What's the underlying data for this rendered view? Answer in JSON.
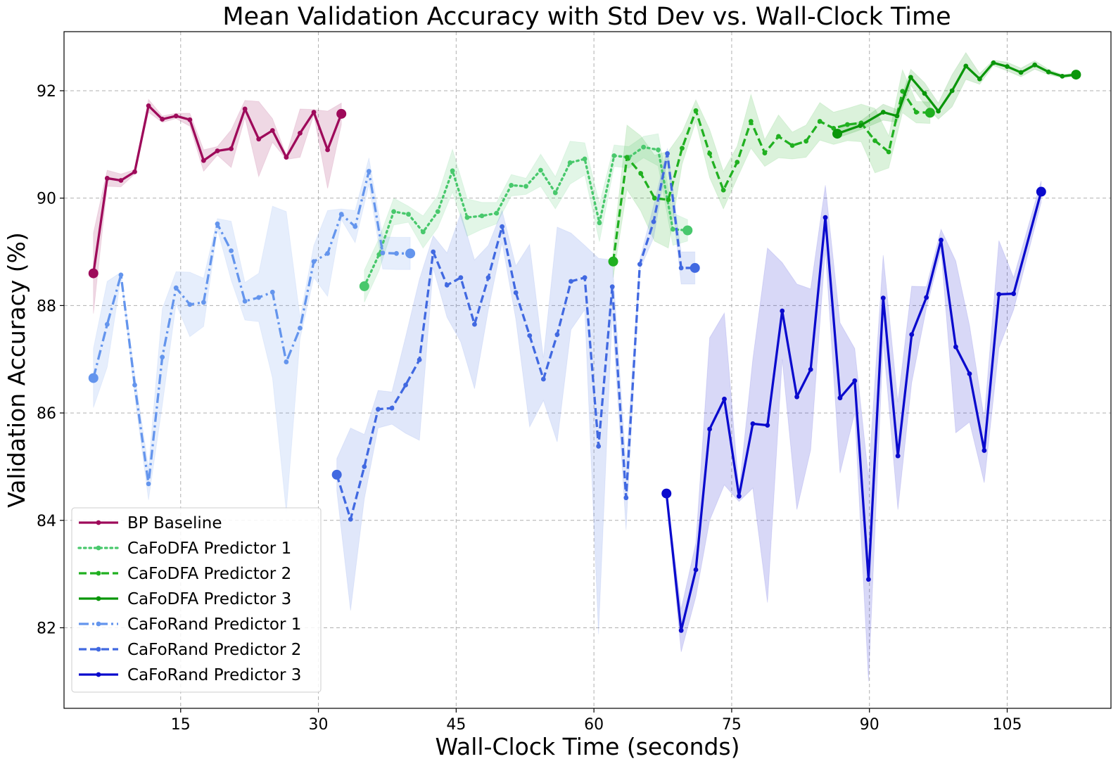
{
  "chart_data": {
    "type": "line",
    "title": "Mean Validation Accuracy with Std Dev vs. Wall-Clock Time",
    "xlabel": "Wall-Clock Time (seconds)",
    "ylabel": "Validation Accuracy (%)",
    "xlim": [
      2.3,
      116.3
    ],
    "ylim": [
      80.5,
      93.1
    ],
    "xticks": [
      15,
      30,
      45,
      60,
      75,
      90,
      105
    ],
    "yticks": [
      82,
      84,
      86,
      88,
      90,
      92
    ],
    "grid": true,
    "legend_position": "lower-left",
    "series": [
      {
        "name": "BP Baseline",
        "color": "#9e0a5a",
        "dash": "solid",
        "x": [
          5.5,
          7.0,
          8.5,
          10.0,
          11.5,
          13.0,
          14.5,
          16.0,
          17.5,
          19.0,
          20.5,
          22.0,
          23.5,
          25.0,
          26.5,
          28.0,
          29.5,
          31.0,
          32.5
        ],
        "y": [
          88.6,
          90.37,
          90.33,
          90.49,
          91.72,
          91.47,
          91.53,
          91.46,
          90.7,
          90.88,
          90.92,
          91.66,
          91.1,
          91.26,
          90.76,
          91.21,
          91.6,
          90.9,
          91.57
        ],
        "std": [
          0.75,
          0.15,
          0.12,
          0.04,
          0.12,
          0.06,
          0.05,
          0.12,
          0.2,
          0.08,
          0.35,
          0.16,
          0.7,
          0.22,
          0.04,
          0.45,
          0.05,
          0.72,
          0.2
        ]
      },
      {
        "name": "CaFoDFA Predictor 1",
        "color": "#48c86c",
        "dash": "dot",
        "x": [
          35.0,
          36.6,
          38.2,
          39.8,
          41.4,
          43.0,
          44.6,
          46.2,
          47.8,
          49.4,
          51.0,
          52.6,
          54.2,
          55.8,
          57.4,
          59.0,
          60.6,
          62.2,
          63.8,
          65.4,
          67.0,
          68.6,
          70.2
        ],
        "y": [
          88.36,
          88.95,
          89.75,
          89.7,
          89.37,
          89.75,
          90.51,
          89.64,
          89.67,
          89.72,
          90.24,
          90.22,
          90.52,
          90.1,
          90.66,
          90.73,
          89.54,
          90.79,
          90.76,
          90.95,
          90.9,
          89.42,
          89.4
        ],
        "std": [
          0.3,
          0.3,
          0.25,
          0.15,
          0.3,
          0.3,
          0.4,
          0.35,
          0.25,
          0.2,
          0.2,
          0.15,
          0.3,
          0.3,
          0.4,
          0.3,
          0.35,
          0.2,
          0.2,
          0.2,
          0.3,
          0.3,
          0.2
        ]
      },
      {
        "name": "CaFoDFA Predictor 2",
        "color": "#20b020",
        "dash": "dash",
        "x": [
          62.1,
          63.6,
          65.1,
          66.6,
          68.1,
          69.6,
          71.1,
          72.6,
          74.1,
          75.6,
          77.1,
          78.6,
          80.1,
          81.6,
          83.1,
          84.6,
          86.1,
          87.6,
          89.1,
          90.6,
          92.1,
          93.6,
          95.1,
          96.6
        ],
        "y": [
          88.82,
          90.76,
          90.46,
          90.0,
          89.97,
          90.93,
          91.63,
          90.83,
          90.15,
          90.67,
          91.43,
          90.84,
          91.15,
          90.98,
          91.06,
          91.43,
          91.3,
          91.37,
          91.4,
          91.07,
          90.86,
          91.99,
          91.6,
          91.59
        ],
        "std": [
          0.3,
          0.6,
          0.7,
          0.8,
          0.9,
          0.3,
          0.2,
          0.45,
          0.35,
          0.3,
          0.5,
          0.25,
          0.4,
          0.25,
          0.3,
          0.35,
          0.3,
          0.3,
          0.35,
          0.6,
          0.3,
          0.4,
          0.2,
          0.2
        ]
      },
      {
        "name": "CaFoDFA Predictor 3",
        "color": "#0a960a",
        "dash": "solid",
        "x": [
          86.5,
          89.0,
          91.5,
          93.0,
          94.5,
          96.0,
          97.5,
          99.0,
          100.5,
          102.0,
          103.5,
          105.0,
          106.5,
          108.0,
          109.5,
          111.0,
          112.5
        ],
        "y": [
          91.2,
          91.35,
          91.6,
          91.53,
          92.25,
          91.95,
          91.62,
          92.0,
          92.46,
          92.22,
          92.52,
          92.45,
          92.34,
          92.48,
          92.35,
          92.27,
          92.3
        ],
        "std": [
          0.08,
          0.08,
          0.15,
          0.12,
          0.15,
          0.2,
          0.15,
          0.3,
          0.25,
          0.1,
          0.05,
          0.08,
          0.08,
          0.08,
          0.05,
          0.03,
          0.03
        ]
      },
      {
        "name": "CaFoRand Predictor 1",
        "color": "#6495ed",
        "dash": "dashdot",
        "x": [
          5.5,
          7.0,
          8.5,
          10.0,
          11.5,
          13.0,
          14.5,
          16.0,
          17.5,
          19.0,
          20.5,
          22.0,
          23.5,
          25.0,
          26.5,
          28.0,
          29.5,
          31.0,
          32.5,
          34.0,
          35.5,
          37.0,
          38.5,
          40.0
        ],
        "y": [
          86.65,
          87.65,
          88.57,
          86.52,
          84.68,
          87.04,
          88.33,
          88.02,
          88.06,
          89.52,
          89.02,
          88.08,
          88.15,
          88.25,
          86.95,
          87.58,
          88.82,
          88.97,
          89.7,
          89.47,
          90.5,
          88.98,
          88.97,
          88.97
        ],
        "std": [
          0.55,
          0.8,
          0.05,
          0.2,
          0.3,
          0.9,
          0.3,
          0.6,
          0.45,
          0.1,
          0.55,
          0.35,
          0.45,
          1.6,
          2.8,
          0.2,
          0.3,
          0.8,
          0.1,
          0.3,
          0.25,
          0.3,
          0.3,
          0.3
        ]
      },
      {
        "name": "CaFoRand Predictor 2",
        "color": "#4169e1",
        "dash": "dash",
        "x": [
          32.0,
          33.5,
          35.0,
          36.5,
          38.0,
          39.5,
          41.0,
          42.5,
          44.0,
          45.5,
          47.0,
          48.5,
          50.0,
          51.5,
          53.0,
          54.5,
          56.0,
          57.5,
          59.0,
          60.5,
          62.0,
          63.5,
          65.0,
          66.5,
          68.0,
          69.5,
          71.0
        ],
        "y": [
          84.85,
          84.02,
          85.0,
          86.07,
          86.09,
          86.52,
          86.99,
          89.0,
          88.38,
          88.52,
          87.65,
          88.52,
          89.47,
          88.24,
          87.44,
          86.63,
          87.46,
          88.45,
          88.52,
          85.38,
          88.35,
          84.42,
          88.77,
          89.56,
          90.83,
          88.7,
          88.7
        ],
        "std": [
          0.3,
          1.7,
          0.6,
          0.35,
          0.3,
          0.9,
          1.5,
          0.3,
          0.6,
          1.2,
          1.2,
          0.6,
          0.3,
          0.5,
          1.7,
          0.4,
          2.0,
          0.9,
          0.6,
          3.5,
          0.5,
          0.6,
          0.1,
          0.3,
          0.1,
          0.3,
          0.3
        ]
      },
      {
        "name": "CaFoRand Predictor 3",
        "color": "#0a0acd",
        "dash": "solid",
        "x": [
          67.9,
          69.5,
          71.1,
          72.6,
          74.2,
          75.8,
          77.3,
          78.9,
          80.5,
          82.1,
          83.6,
          85.2,
          86.8,
          88.4,
          89.9,
          91.5,
          93.1,
          94.6,
          96.2,
          97.8,
          99.4,
          100.9,
          102.5,
          104.1,
          105.7,
          108.7
        ],
        "y": [
          84.5,
          81.95,
          83.08,
          85.7,
          86.26,
          84.45,
          85.8,
          85.77,
          87.9,
          86.3,
          86.81,
          89.64,
          86.28,
          86.6,
          82.9,
          88.14,
          85.2,
          87.46,
          88.15,
          89.22,
          87.23,
          86.73,
          85.3,
          88.21,
          88.22,
          90.12
        ],
        "std": [
          0.05,
          0.4,
          0.5,
          1.7,
          1.6,
          0.1,
          1.2,
          3.3,
          0.9,
          2.1,
          1.5,
          0.6,
          1.4,
          0.6,
          1.9,
          0.8,
          1.0,
          0.9,
          0.2,
          0.2,
          1.6,
          0.9,
          0.6,
          1.0,
          0.3,
          0.2
        ]
      }
    ]
  }
}
